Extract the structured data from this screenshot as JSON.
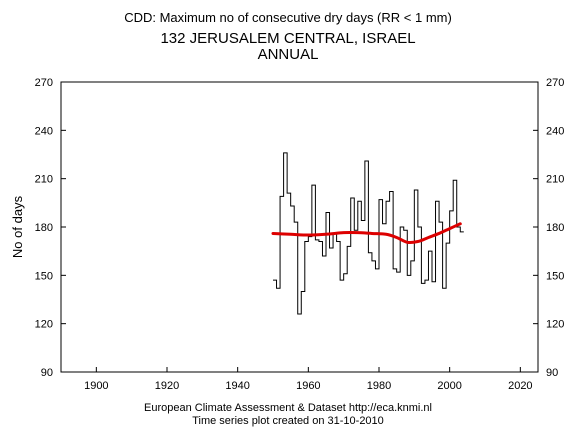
{
  "chart_data": {
    "type": "line",
    "title": "CDD: Maximum no of consecutive dry days (RR < 1 mm)",
    "subtitle": "132 JERUSALEM CENTRAL, ISRAEL",
    "period": "ANNUAL",
    "xlabel": "",
    "ylabel": "No of days",
    "xlim": [
      1890,
      2025
    ],
    "ylim": [
      90,
      270
    ],
    "xticks": [
      1900,
      1920,
      1940,
      1960,
      1980,
      2000,
      2020
    ],
    "yticks": [
      90,
      120,
      150,
      180,
      210,
      240,
      270
    ],
    "grid": false,
    "series": [
      {
        "kind": "step",
        "color": "#000000",
        "years": [
          1950,
          1951,
          1952,
          1953,
          1954,
          1955,
          1956,
          1957,
          1958,
          1959,
          1960,
          1961,
          1962,
          1963,
          1964,
          1965,
          1966,
          1967,
          1968,
          1969,
          1970,
          1971,
          1972,
          1973,
          1974,
          1975,
          1976,
          1977,
          1978,
          1979,
          1980,
          1981,
          1982,
          1983,
          1984,
          1985,
          1986,
          1987,
          1988,
          1989,
          1990,
          1991,
          1992,
          1993,
          1994,
          1995,
          1996,
          1997,
          1998,
          1999,
          2000,
          2001,
          2002,
          2003
        ],
        "values": [
          147,
          142,
          199,
          226,
          201,
          193,
          183,
          126,
          140,
          171,
          174,
          206,
          172,
          171,
          162,
          189,
          167,
          176,
          171,
          147,
          151,
          168,
          198,
          178,
          196,
          184,
          221,
          164,
          159,
          154,
          197,
          182,
          196,
          202,
          154,
          152,
          180,
          178,
          150,
          159,
          203,
          180,
          145,
          147,
          165,
          146,
          196,
          183,
          142,
          170,
          190,
          209,
          180,
          177
        ]
      },
      {
        "kind": "smooth-trend",
        "color": "#dd0000",
        "years": [
          1950,
          1955,
          1960,
          1965,
          1970,
          1974,
          1978,
          1982,
          1985,
          1988,
          1991,
          1994,
          1997,
          2000,
          2003
        ],
        "values": [
          176,
          175.5,
          175,
          175.5,
          176.5,
          176.5,
          176,
          175.5,
          173.5,
          170.5,
          171,
          173.5,
          176,
          179,
          182
        ]
      }
    ]
  },
  "footer": {
    "line1": "European Climate Assessment & Dataset  http://eca.knmi.nl",
    "line2": "Time series plot created on 31-10-2010"
  }
}
